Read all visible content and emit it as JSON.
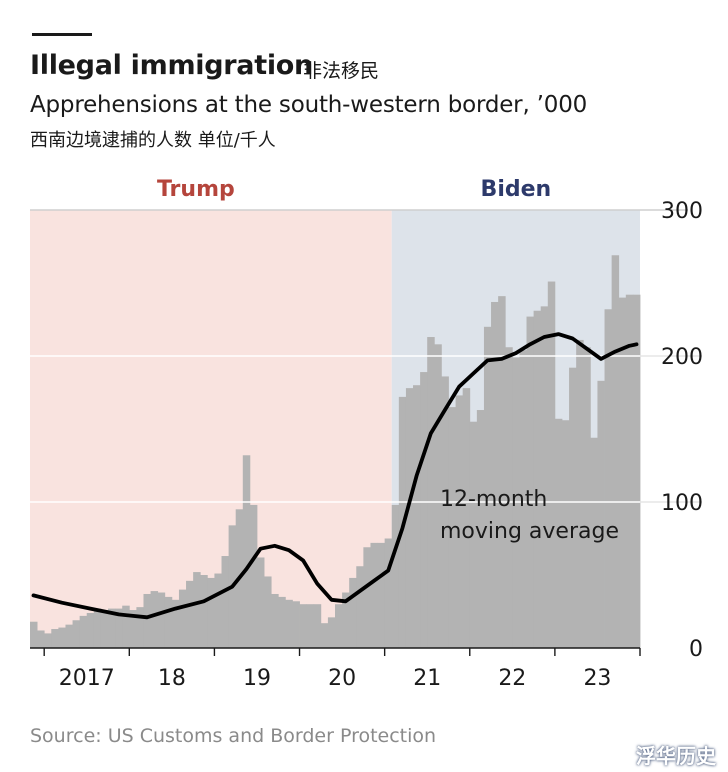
{
  "header": {
    "title": "Illegal immigration",
    "title_cn": "非法移民",
    "subtitle": "Apprehensions at the south-western border, ’000",
    "subtitle_cn": "西南边境逮捕的人数 单位/千人"
  },
  "source": "Source: US Customs and Border Protection",
  "watermark": "浮华历史",
  "colors": {
    "trump_shade": "#f9e3df",
    "biden_shade": "#dde3ea",
    "trump_label": "#b5453c",
    "biden_label": "#2d3a6b",
    "bars": "#b3b3b3",
    "average_line": "#000000",
    "gridline": "#ffffff",
    "axis": "#1a1a1a"
  },
  "chart_data": {
    "type": "bar",
    "title": "Illegal immigration",
    "ylabel": "Apprehensions at the south-western border, ’000",
    "ylim": [
      0,
      300
    ],
    "yticks": [
      0,
      100,
      200,
      300
    ],
    "xlim": [
      "2016-11",
      "2023-12"
    ],
    "grid": true,
    "y_axis_position": "right",
    "x_tick_labels": [
      {
        "label": "2017",
        "year": 2017
      },
      {
        "label": "18",
        "year": 2018
      },
      {
        "label": "19",
        "year": 2019
      },
      {
        "label": "20",
        "year": 2020
      },
      {
        "label": "21",
        "year": 2021
      },
      {
        "label": "22",
        "year": 2022
      },
      {
        "label": "23",
        "year": 2023
      }
    ],
    "periods": [
      {
        "label": "Trump",
        "start": "2016-11",
        "end": "2021-01"
      },
      {
        "label": "Biden",
        "start": "2021-02",
        "end": "2023-12"
      }
    ],
    "annotation": {
      "line1": "12-month",
      "line2": "moving average"
    },
    "bars_series": {
      "name": "Monthly apprehensions",
      "months": [
        "2016-11",
        "2016-12",
        "2017-01",
        "2017-02",
        "2017-03",
        "2017-04",
        "2017-05",
        "2017-06",
        "2017-07",
        "2017-08",
        "2017-09",
        "2017-10",
        "2017-11",
        "2017-12",
        "2018-01",
        "2018-02",
        "2018-03",
        "2018-04",
        "2018-05",
        "2018-06",
        "2018-07",
        "2018-08",
        "2018-09",
        "2018-10",
        "2018-11",
        "2018-12",
        "2019-01",
        "2019-02",
        "2019-03",
        "2019-04",
        "2019-05",
        "2019-06",
        "2019-07",
        "2019-08",
        "2019-09",
        "2019-10",
        "2019-11",
        "2019-12",
        "2020-01",
        "2020-02",
        "2020-03",
        "2020-04",
        "2020-05",
        "2020-06",
        "2020-07",
        "2020-08",
        "2020-09",
        "2020-10",
        "2020-11",
        "2020-12",
        "2021-01",
        "2021-02",
        "2021-03",
        "2021-04",
        "2021-05",
        "2021-06",
        "2021-07",
        "2021-08",
        "2021-09",
        "2021-10",
        "2021-11",
        "2021-12",
        "2022-01",
        "2022-02",
        "2022-03",
        "2022-04",
        "2022-05",
        "2022-06",
        "2022-07",
        "2022-08",
        "2022-09",
        "2022-10",
        "2022-11",
        "2022-12",
        "2023-01",
        "2023-02",
        "2023-03",
        "2023-04",
        "2023-05",
        "2023-06",
        "2023-07",
        "2023-08",
        "2023-09",
        "2023-10",
        "2023-11",
        "2023-12"
      ],
      "values": [
        18,
        12,
        10,
        13,
        14,
        16,
        19,
        22,
        24,
        27,
        26,
        27,
        27,
        29,
        26,
        28,
        37,
        39,
        38,
        35,
        33,
        40,
        46,
        52,
        50,
        48,
        51,
        63,
        84,
        95,
        132,
        98,
        62,
        49,
        37,
        35,
        33,
        32,
        30,
        30,
        30,
        17,
        21,
        30,
        38,
        48,
        56,
        69,
        72,
        72,
        75,
        98,
        172,
        178,
        180,
        189,
        213,
        208,
        186,
        165,
        173,
        178,
        155,
        163,
        220,
        237,
        241,
        206,
        199,
        204,
        227,
        231,
        234,
        251,
        157,
        156,
        192,
        211,
        206,
        144,
        183,
        232,
        269,
        240,
        242,
        242
      ]
    },
    "average_series": {
      "name": "12-month moving average",
      "months": [
        "2016-11",
        "2017-03",
        "2017-07",
        "2017-11",
        "2018-03",
        "2018-07",
        "2018-11",
        "2019-03",
        "2019-05",
        "2019-07",
        "2019-09",
        "2019-11",
        "2020-01",
        "2020-03",
        "2020-05",
        "2020-07",
        "2020-09",
        "2020-11",
        "2021-01",
        "2021-03",
        "2021-05",
        "2021-07",
        "2021-09",
        "2021-11",
        "2022-01",
        "2022-03",
        "2022-05",
        "2022-07",
        "2022-09",
        "2022-11",
        "2023-01",
        "2023-03",
        "2023-05",
        "2023-07",
        "2023-09",
        "2023-11",
        "2023-12"
      ],
      "values": [
        36,
        31,
        27,
        23,
        21,
        27,
        32,
        42,
        54,
        68,
        70,
        67,
        60,
        44,
        33,
        32,
        39,
        46,
        53,
        82,
        118,
        147,
        163,
        179,
        188,
        197,
        198,
        202,
        208,
        213,
        215,
        212,
        205,
        198,
        203,
        207,
        208
      ]
    }
  }
}
